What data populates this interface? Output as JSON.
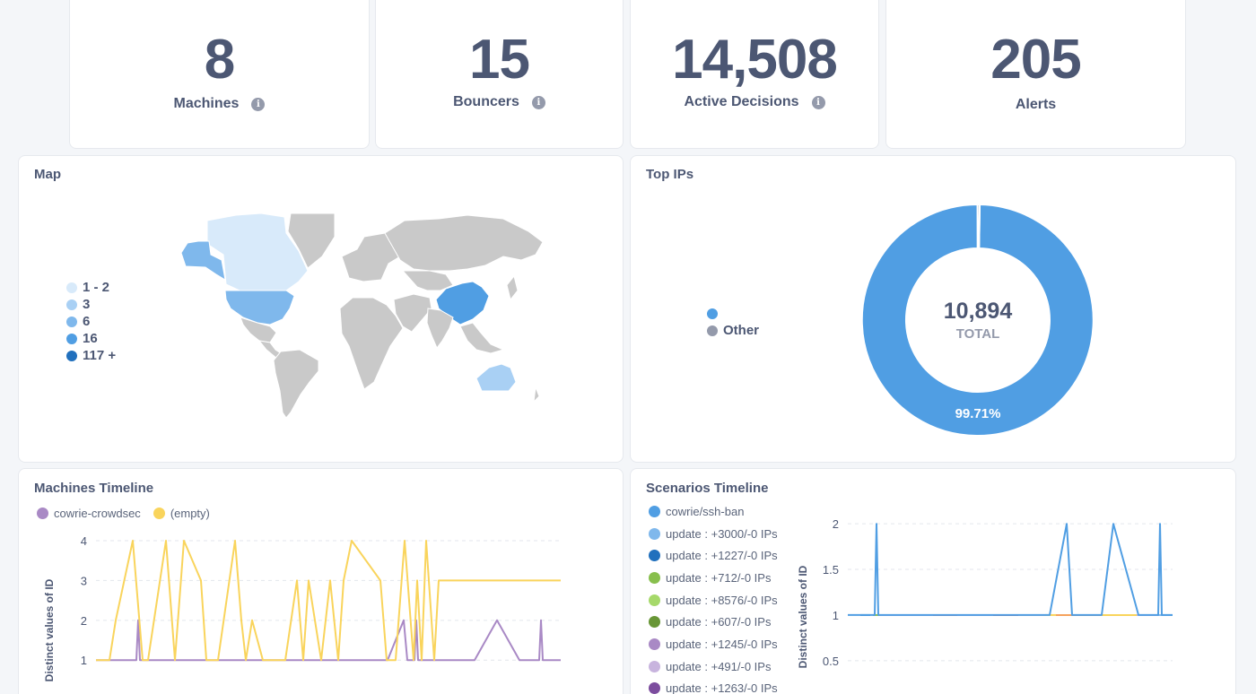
{
  "stats": [
    {
      "value": "8",
      "label": "Machines",
      "info": true
    },
    {
      "value": "15",
      "label": "Bouncers",
      "info": true
    },
    {
      "value": "14,508",
      "label": "Active Decisions",
      "info": true
    },
    {
      "value": "205",
      "label": "Alerts",
      "info": false
    }
  ],
  "map": {
    "title": "Map",
    "legend": [
      {
        "label": "1 - 2",
        "color": "#d8eafa"
      },
      {
        "label": "3",
        "color": "#a9d0f4"
      },
      {
        "label": "6",
        "color": "#7fb8ec"
      },
      {
        "label": "16",
        "color": "#509ee3"
      },
      {
        "label": "117 +",
        "color": "#2170bd"
      }
    ],
    "colors": {
      "base": "#c9c9c9",
      "usa": "#7fb8ec",
      "canada": "#d8eafa",
      "alaska": "#7fb8ec",
      "china": "#509ee3",
      "australia": "#a9d0f4"
    }
  },
  "top_ips": {
    "title": "Top IPs",
    "legend": [
      {
        "label": "",
        "color": "#509ee3"
      },
      {
        "label": "Other",
        "color": "#949aab"
      }
    ],
    "total_value": "10,894",
    "total_label": "TOTAL",
    "slice_label": "99.71%",
    "chart_data": {
      "type": "pie",
      "slices": [
        {
          "label": "",
          "percent": 99.71,
          "color": "#509ee3"
        },
        {
          "label": "Other",
          "percent": 0.29,
          "color": "#949aab"
        }
      ],
      "total": 10894
    }
  },
  "machines_timeline": {
    "title": "Machines Timeline",
    "ylabel": "Distinct values of ID",
    "legend": [
      {
        "label": "cowrie-crowdsec",
        "color": "#a989c5"
      },
      {
        "label": "(empty)",
        "color": "#f9d45c"
      }
    ],
    "chart_data": {
      "type": "line",
      "ylim": [
        0.6,
        4
      ],
      "yticks": [
        1,
        2,
        3,
        4
      ],
      "series": [
        {
          "name": "cowrie-crowdsec",
          "color": "#a989c5",
          "points": [
            [
              0,
              1
            ],
            [
              45,
              1
            ],
            [
              47,
              2
            ],
            [
              49,
              1
            ],
            [
              325,
              1
            ],
            [
              343,
              2
            ],
            [
              347,
              1
            ],
            [
              355,
              1
            ],
            [
              357,
              2
            ],
            [
              359,
              1
            ],
            [
              422,
              1
            ],
            [
              447,
              2
            ],
            [
              472,
              1
            ],
            [
              494,
              1
            ],
            [
              496,
              2
            ],
            [
              498,
              1
            ],
            [
              518,
              1
            ]
          ]
        },
        {
          "name": "(empty)",
          "color": "#f9d45c",
          "points": [
            [
              0,
              1
            ],
            [
              15,
              1
            ],
            [
              22,
              2
            ],
            [
              41,
              4
            ],
            [
              52,
              1
            ],
            [
              58,
              1
            ],
            [
              78,
              4
            ],
            [
              88,
              1
            ],
            [
              98,
              4
            ],
            [
              117,
              3
            ],
            [
              123,
              1
            ],
            [
              136,
              1
            ],
            [
              155,
              4
            ],
            [
              162,
              2
            ],
            [
              167,
              1
            ],
            [
              174,
              2
            ],
            [
              186,
              1
            ],
            [
              211,
              1
            ],
            [
              224,
              3
            ],
            [
              231,
              1
            ],
            [
              237,
              3
            ],
            [
              251,
              1
            ],
            [
              261,
              3
            ],
            [
              270,
              1
            ],
            [
              276,
              3
            ],
            [
              285,
              4
            ],
            [
              317,
              3
            ],
            [
              324,
              1
            ],
            [
              334,
              1
            ],
            [
              344,
              4
            ],
            [
              354,
              1
            ],
            [
              358,
              3
            ],
            [
              363,
              1
            ],
            [
              368,
              4
            ],
            [
              377,
              1
            ],
            [
              382,
              3
            ],
            [
              518,
              3
            ]
          ]
        }
      ]
    }
  },
  "scenarios_timeline": {
    "title": "Scenarios Timeline",
    "ylabel": "Distinct values of ID",
    "legend": [
      {
        "label": "cowrie/ssh-ban",
        "color": "#509ee3"
      },
      {
        "label": "update : +3000/-0 IPs",
        "color": "#7fb8ec"
      },
      {
        "label": "update : +1227/-0 IPs",
        "color": "#2170bd"
      },
      {
        "label": "update : +712/-0 IPs",
        "color": "#88bf4d"
      },
      {
        "label": "update : +8576/-0 IPs",
        "color": "#a6d96a"
      },
      {
        "label": "update : +607/-0 IPs",
        "color": "#689636"
      },
      {
        "label": "update : +1245/-0 IPs",
        "color": "#a989c5"
      },
      {
        "label": "update : +491/-0 IPs",
        "color": "#c8b4de"
      },
      {
        "label": "update : +1263/-0 IPs",
        "color": "#7c4d9e"
      }
    ],
    "chart_data": {
      "type": "line",
      "ylim": [
        0.4,
        2.1
      ],
      "yticks": [
        0.5,
        1,
        1.5,
        2
      ],
      "series": [
        {
          "name": "cowrie/ssh-ban",
          "color": "#509ee3",
          "points": [
            [
              0,
              1
            ],
            [
              30,
              1
            ],
            [
              32,
              2
            ],
            [
              34,
              1
            ],
            [
              225,
              1
            ],
            [
              244,
              2
            ],
            [
              250,
              1
            ],
            [
              283,
              1
            ],
            [
              296,
              2
            ],
            [
              324,
              1
            ],
            [
              346,
              1
            ],
            [
              348,
              2
            ],
            [
              350,
              1
            ],
            [
              362,
              1
            ]
          ]
        }
      ],
      "baseline_segments": [
        {
          "color": "#2170bd",
          "from": 14,
          "to": 25
        },
        {
          "color": "#88bf4d",
          "from": 28,
          "to": 36
        },
        {
          "color": "#c8b4de",
          "from": 36,
          "to": 95
        },
        {
          "color": "#e8736e",
          "from": 95,
          "to": 122
        },
        {
          "color": "#c8b4de",
          "from": 122,
          "to": 162
        },
        {
          "color": "#d9534f",
          "from": 162,
          "to": 190
        },
        {
          "color": "#f2c4a8",
          "from": 190,
          "to": 220
        },
        {
          "color": "#f9d45c",
          "from": 220,
          "to": 232
        },
        {
          "color": "#f5a25d",
          "from": 232,
          "to": 282
        },
        {
          "color": "#f9d45c",
          "from": 282,
          "to": 322
        },
        {
          "color": "#c8b4de",
          "from": 322,
          "to": 345
        },
        {
          "color": "#7fb8ec",
          "from": 345,
          "to": 362
        }
      ]
    }
  }
}
